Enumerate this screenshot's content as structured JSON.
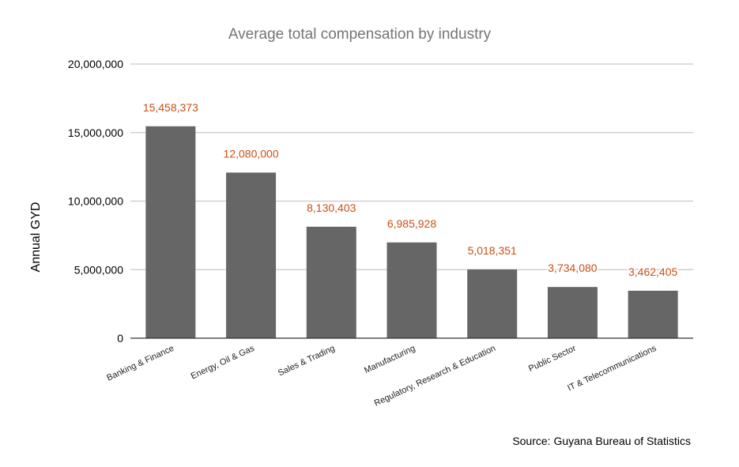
{
  "chart_data": {
    "type": "bar",
    "title": "Average total compensation by industry",
    "xlabel": "",
    "ylabel": "Annual GYD",
    "ylim": [
      0,
      20000000
    ],
    "yticks": [
      0,
      5000000,
      10000000,
      15000000,
      20000000
    ],
    "ytick_labels": [
      "0",
      "5,000,000",
      "10,000,000",
      "15,000,000",
      "20,000,000"
    ],
    "grid": true,
    "legend": "none",
    "categories": [
      "Banking & Finance",
      "Energy, Oil & Gas",
      "Sales & Trading",
      "Manufacturing",
      "Regulatory, Research & Education",
      "Public Sector",
      "IT & Telecommunications"
    ],
    "values": [
      15458373,
      12080000,
      8130403,
      6985928,
      5018351,
      3734080,
      3462405
    ],
    "data_labels": [
      "15,458,373",
      "12,080,000",
      "8,130,403",
      "6,985,928",
      "5,018,351",
      "3,734,080",
      "3,462,405"
    ],
    "bar_color": "#666666",
    "label_color": "#cc4e12",
    "source": "Source: Guyana Bureau of Statistics"
  }
}
